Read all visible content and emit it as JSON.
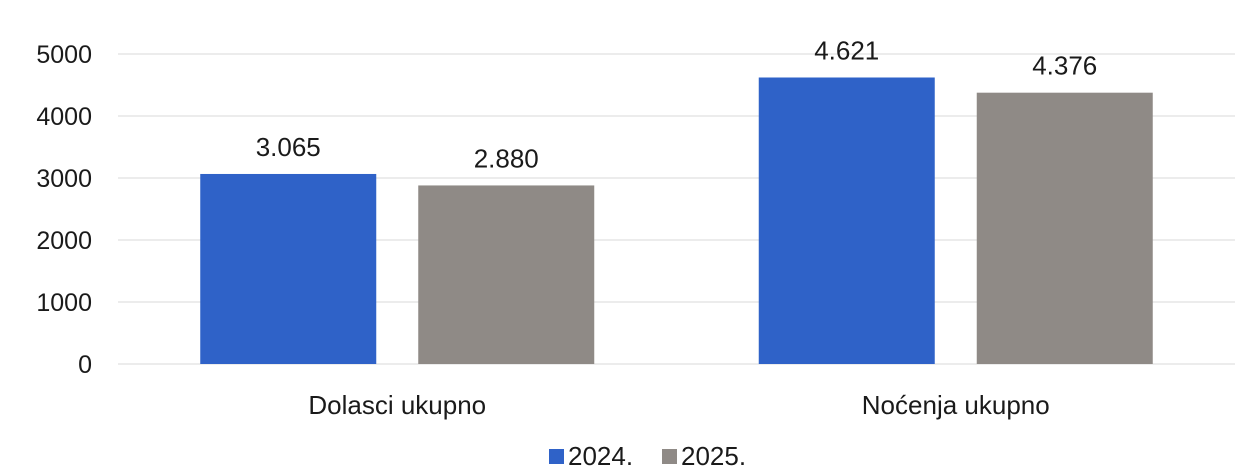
{
  "chart_data": {
    "type": "bar",
    "categories": [
      "Dolasci ukupno",
      "Noćenja ukupno"
    ],
    "series": [
      {
        "name": "2024.",
        "values": [
          3065,
          4621
        ],
        "labels": [
          "3.065",
          "4.621"
        ],
        "color": "#2f62c8"
      },
      {
        "name": "2025.",
        "values": [
          2880,
          4376
        ],
        "labels": [
          "2.880",
          "4.376"
        ],
        "color": "#8f8a86"
      }
    ],
    "y_ticks": [
      0,
      1000,
      2000,
      3000,
      4000,
      5000
    ],
    "ylim": [
      0,
      5000
    ],
    "grid": true,
    "legend": "bottom-center"
  }
}
